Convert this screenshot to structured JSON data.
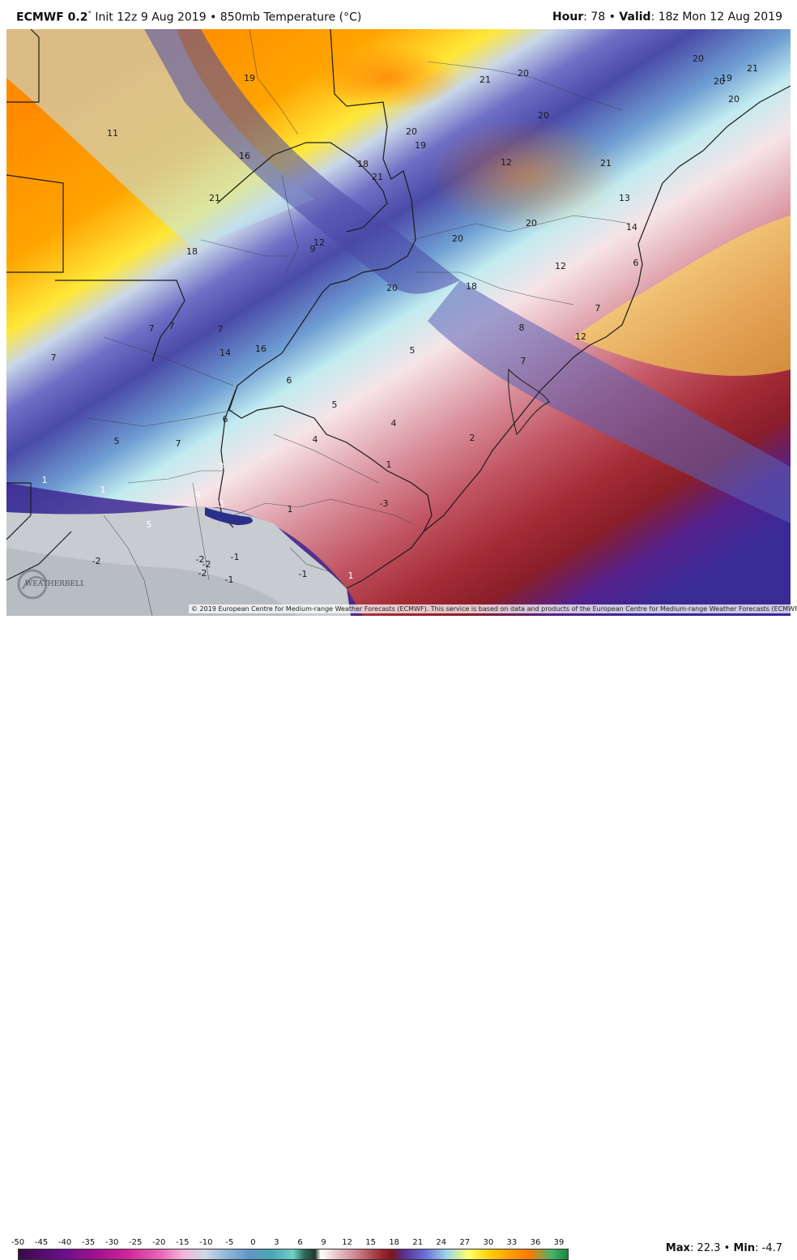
{
  "header": {
    "model": "ECMWF 0.2",
    "deg": "°",
    "init": "Init 12z 9 Aug 2019",
    "sep": "•",
    "field": "850mb Temperature (°C)",
    "hour_label": "Hour",
    "hour_value": ": 78",
    "valid_label": "Valid",
    "valid_value": ": 18z Mon 12 Aug 2019"
  },
  "attribution": "© 2019 European Centre for Medium-range Weather Forecasts (ECMWF). This service is based on data and products of the European Centre for Medium-range Weather Forecasts (ECMWF).",
  "logo_text": "WEATHERBELL",
  "legend": {
    "ticks": [
      "-50",
      "-45",
      "-40",
      "-35",
      "-30",
      "-25",
      "-20",
      "-15",
      "-10",
      "-5",
      "0",
      "3",
      "6",
      "9",
      "12",
      "15",
      "18",
      "21",
      "24",
      "27",
      "30",
      "33",
      "36",
      "39"
    ],
    "max_label": "Max",
    "max_value": ": 22.3",
    "sep": "•",
    "min_label": "Min",
    "min_value": ": -4.7"
  },
  "map_labels": [
    "19",
    "21",
    "20",
    "20",
    "20",
    "19",
    "21",
    "20",
    "11",
    "16",
    "20",
    "19",
    "18",
    "21",
    "20",
    "12",
    "21",
    "21",
    "20",
    "13",
    "12",
    "9",
    "18",
    "20",
    "12",
    "14",
    "20",
    "18",
    "6",
    "7",
    "7",
    "7",
    "7",
    "14",
    "16",
    "8",
    "12",
    "5",
    "7",
    "7",
    "6",
    "5",
    "6",
    "5",
    "4",
    "4",
    "7",
    "2",
    "3",
    "1",
    "1",
    "1",
    "4",
    "3",
    "5",
    "1",
    "-3",
    "-2",
    "-2",
    "-2",
    "-2",
    "-1",
    "-1",
    "-1",
    "1"
  ]
}
